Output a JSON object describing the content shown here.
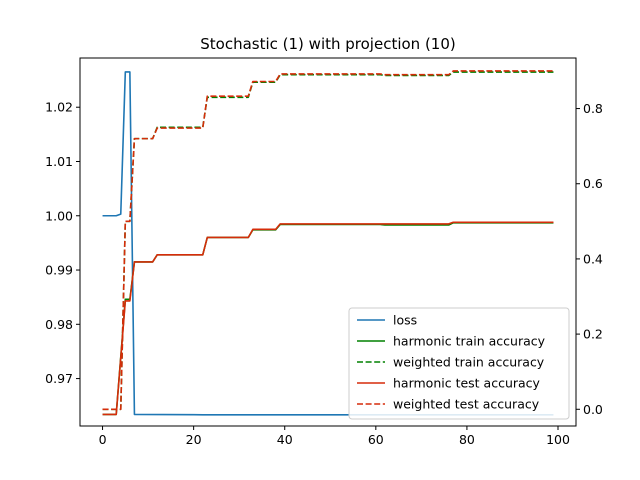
{
  "chart_data": {
    "type": "line",
    "title": "Stochastic (1) with projection (10)",
    "xlabel": "",
    "ylabel_left": "",
    "ylabel_right": "",
    "xlim": [
      -4.95,
      103.95
    ],
    "ylim_left": [
      0.96126,
      1.02907
    ],
    "ylim_right": [
      -0.0445,
      0.9345
    ],
    "xticks": [
      0,
      20,
      40,
      60,
      80,
      100
    ],
    "yticks_left": [
      0.97,
      0.98,
      0.99,
      1.0,
      1.01,
      1.02
    ],
    "ytick_labels_left": [
      "0.97",
      "0.98",
      "0.99",
      "1.00",
      "1.01",
      "1.02"
    ],
    "yticks_right": [
      0.0,
      0.2,
      0.4,
      0.6,
      0.8
    ],
    "ytick_labels_right": [
      "0.0",
      "0.2",
      "0.4",
      "0.6",
      "0.8"
    ],
    "grid": false,
    "legend_position": "lower-right",
    "series": [
      {
        "name": "loss",
        "axis": "left",
        "color": "#1f77b4",
        "dash": "solid",
        "points": [
          [
            0,
            1.0
          ],
          [
            3,
            1.0
          ],
          [
            4,
            1.0003
          ],
          [
            5,
            1.0265
          ],
          [
            6,
            1.0265
          ],
          [
            7,
            0.9634
          ],
          [
            20,
            0.96335
          ],
          [
            22,
            0.96332
          ],
          [
            40,
            0.96332
          ],
          [
            99,
            0.96332
          ]
        ]
      },
      {
        "name": "harmonic train accuracy",
        "axis": "left",
        "color": "#008000",
        "dash": "solid",
        "points": [
          [
            0,
            0.9634
          ],
          [
            3,
            0.9634
          ],
          [
            5,
            0.9846
          ],
          [
            6,
            0.9846
          ],
          [
            7,
            0.9915
          ],
          [
            11,
            0.9915
          ],
          [
            12,
            0.9928
          ],
          [
            22,
            0.9928
          ],
          [
            23,
            0.996
          ],
          [
            32,
            0.996
          ],
          [
            33,
            0.9974
          ],
          [
            38,
            0.9974
          ],
          [
            39,
            0.9984
          ],
          [
            61,
            0.9984
          ],
          [
            62,
            0.9983
          ],
          [
            76,
            0.9983
          ],
          [
            77,
            0.9987
          ],
          [
            99,
            0.9987
          ]
        ]
      },
      {
        "name": "weighted train accuracy",
        "axis": "right",
        "color": "#008000",
        "dash": "dashed",
        "points": [
          [
            0,
            0.0
          ],
          [
            4,
            0.0
          ],
          [
            5,
            0.5
          ],
          [
            6,
            0.5
          ],
          [
            7,
            0.72
          ],
          [
            11,
            0.72
          ],
          [
            12,
            0.75
          ],
          [
            22,
            0.75
          ],
          [
            23,
            0.83
          ],
          [
            32,
            0.83
          ],
          [
            33,
            0.87
          ],
          [
            38,
            0.87
          ],
          [
            39,
            0.89
          ],
          [
            61,
            0.89
          ],
          [
            62,
            0.888
          ],
          [
            76,
            0.888
          ],
          [
            77,
            0.897
          ],
          [
            99,
            0.897
          ]
        ]
      },
      {
        "name": "harmonic test accuracy",
        "axis": "left",
        "color": "#d62c0a",
        "dash": "solid",
        "points": [
          [
            0,
            0.9634
          ],
          [
            3,
            0.9634
          ],
          [
            5,
            0.9843
          ],
          [
            6,
            0.9843
          ],
          [
            7,
            0.9915
          ],
          [
            11,
            0.9915
          ],
          [
            12,
            0.9928
          ],
          [
            22,
            0.9928
          ],
          [
            23,
            0.996
          ],
          [
            32,
            0.996
          ],
          [
            33,
            0.9975
          ],
          [
            38,
            0.9975
          ],
          [
            39,
            0.9985
          ],
          [
            61,
            0.9985
          ],
          [
            62,
            0.9985
          ],
          [
            76,
            0.9985
          ],
          [
            77,
            0.9988
          ],
          [
            99,
            0.9988
          ]
        ]
      },
      {
        "name": "weighted test accuracy",
        "axis": "right",
        "color": "#d62c0a",
        "dash": "dashed",
        "points": [
          [
            0,
            0.0
          ],
          [
            4,
            0.0
          ],
          [
            5,
            0.5
          ],
          [
            6,
            0.5
          ],
          [
            7,
            0.72
          ],
          [
            11,
            0.72
          ],
          [
            12,
            0.748
          ],
          [
            22,
            0.748
          ],
          [
            23,
            0.833
          ],
          [
            32,
            0.833
          ],
          [
            33,
            0.872
          ],
          [
            38,
            0.872
          ],
          [
            39,
            0.892
          ],
          [
            61,
            0.892
          ],
          [
            62,
            0.89
          ],
          [
            76,
            0.89
          ],
          [
            77,
            0.9
          ],
          [
            99,
            0.9
          ]
        ]
      }
    ]
  }
}
